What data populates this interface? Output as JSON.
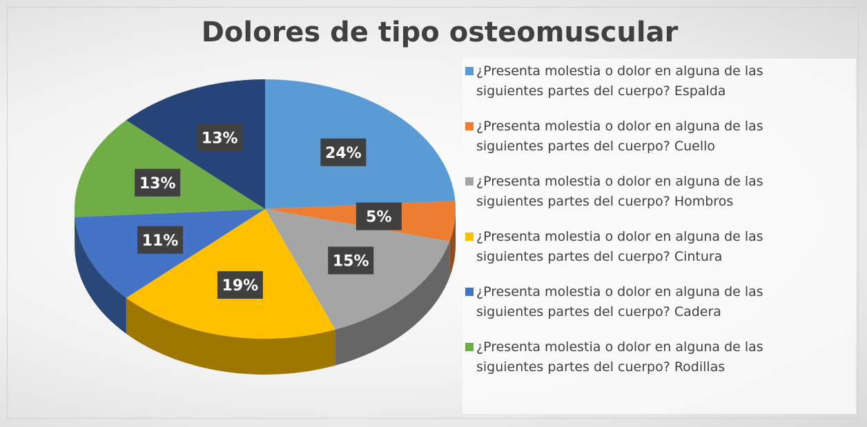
{
  "chart_data": {
    "type": "pie",
    "title": "Dolores de tipo osteomuscular",
    "categories": [
      "¿Presenta molestia o dolor en alguna de las siguientes partes del cuerpo? Espalda",
      "¿Presenta molestia o dolor en alguna de las siguientes partes del cuerpo? Cuello",
      "¿Presenta molestia o dolor en alguna de las siguientes partes del cuerpo? Hombros",
      "¿Presenta molestia o dolor en alguna de las siguientes partes del cuerpo? Cintura",
      "¿Presenta molestia o dolor en alguna de las siguientes partes del cuerpo? Cadera",
      "¿Presenta molestia o dolor en alguna de las siguientes partes del cuerpo? Rodillas",
      null
    ],
    "values": [
      24,
      5,
      15,
      19,
      11,
      13,
      13
    ],
    "value_labels": [
      "24%",
      "5%",
      "15%",
      "19%",
      "11%",
      "13%",
      "13%"
    ],
    "colors": [
      "#5b9bd5",
      "#ed7d31",
      "#a5a5a5",
      "#ffc000",
      "#4472c4",
      "#70ad47",
      "#264478"
    ],
    "legend": "right"
  }
}
